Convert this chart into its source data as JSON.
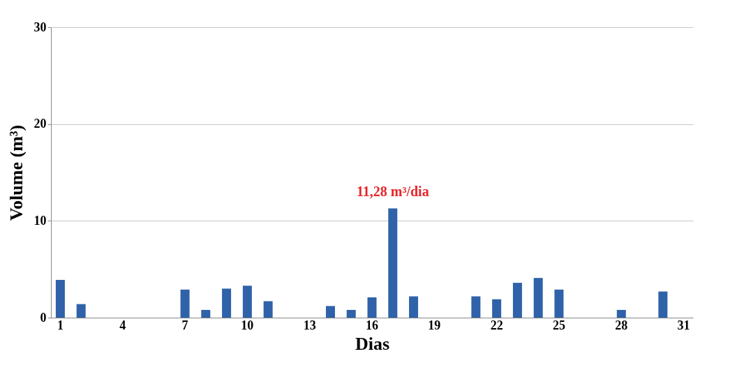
{
  "chart_data": {
    "type": "bar",
    "xlabel": "Dias",
    "ylabel": "Volume (m³)",
    "categories": [
      "1",
      null,
      null,
      "4",
      null,
      null,
      "7",
      null,
      null,
      "10",
      null,
      null,
      "13",
      null,
      null,
      "16",
      null,
      null,
      "19",
      null,
      null,
      "22",
      null,
      null,
      "25",
      null,
      null,
      "28",
      null,
      null,
      "31"
    ],
    "values": [
      3.9,
      1.4,
      0,
      0,
      0,
      0,
      2.9,
      0.8,
      3.0,
      3.3,
      1.7,
      0,
      0,
      1.2,
      0.8,
      2.1,
      11.28,
      2.2,
      0,
      0,
      2.2,
      1.9,
      3.6,
      4.1,
      2.9,
      0,
      0,
      0.8,
      0,
      2.7,
      0
    ],
    "color": "#2f62a8",
    "ylim": [
      0,
      30
    ],
    "yticks": [
      0,
      10,
      20,
      30
    ],
    "grid": "y",
    "annotations": [
      {
        "text": "11,28 m³/dia",
        "y": 11.28
      }
    ]
  }
}
